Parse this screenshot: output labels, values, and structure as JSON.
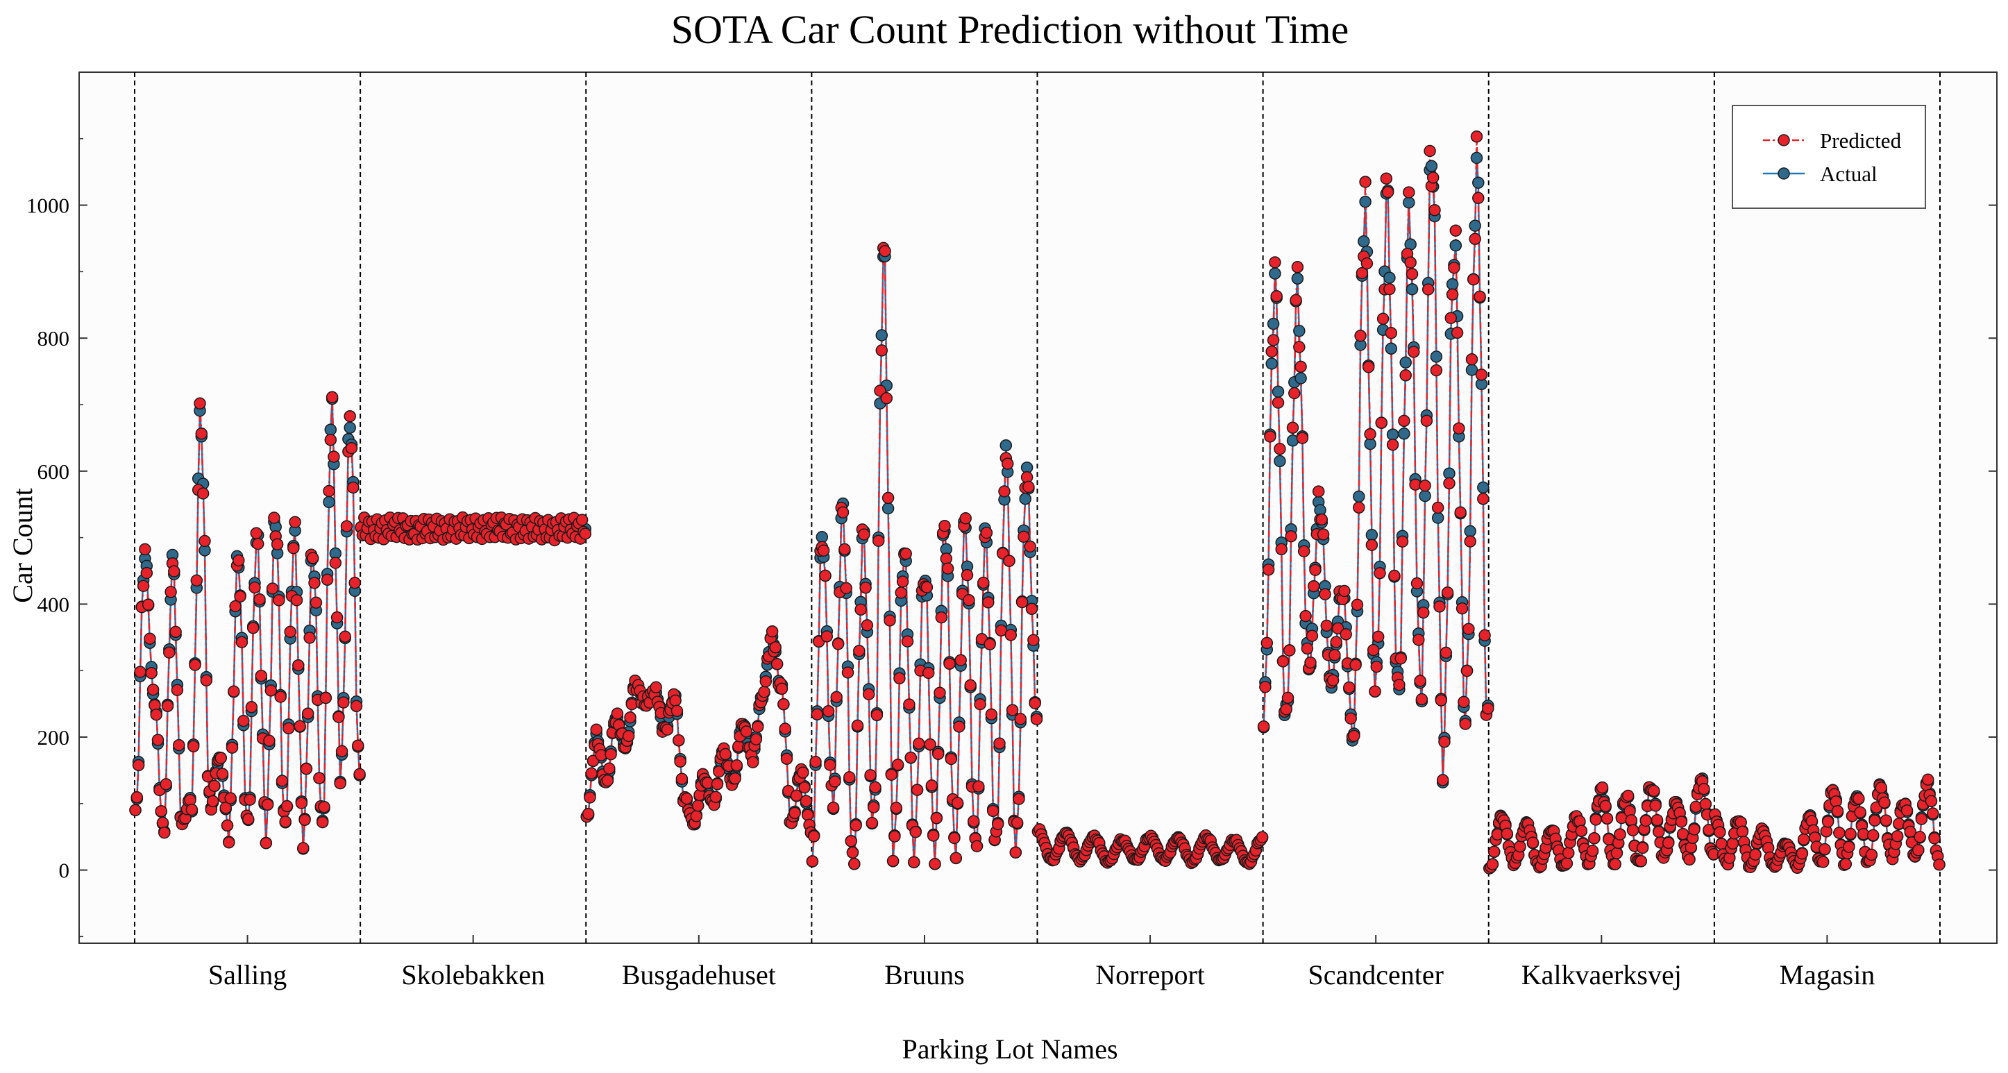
{
  "chart_data": {
    "type": "line",
    "title": "SOTA Car Count Prediction without Time",
    "xlabel": "Parking Lot Names",
    "ylabel": "Car Count",
    "ylim": [
      -110,
      1200
    ],
    "yticks": [
      0,
      200,
      400,
      600,
      800,
      1000
    ],
    "grid": false,
    "legend_position": "top-right",
    "colors": {
      "predicted": "#e8222b",
      "predicted_line": "#e8222b",
      "actual": "#1f77b4",
      "actual_marker_face": "#2f6a8c",
      "marker_edge": "#1a1a1a",
      "separator": "#000000"
    },
    "categories": [
      "Salling",
      "Skolebakken",
      "Busgadehuset",
      "Bruuns",
      "Norreport",
      "Scandcenter",
      "Kalkvaerksvej",
      "Magasin"
    ],
    "series": [
      {
        "name": "Predicted",
        "style": "dash-dot",
        "marker": "circle"
      },
      {
        "name": "Actual",
        "style": "solid",
        "marker": "circle"
      }
    ],
    "segments": [
      {
        "name": "Salling",
        "anchors": [
          75,
          470,
          260,
          60,
          460,
          70,
          110,
          680,
          90,
          170,
          60,
          470,
          60,
          500,
          60,
          530,
          60,
          500,
          50,
          480,
          60,
          690,
          150,
          680,
          130
        ]
      },
      {
        "name": "Skolebakken",
        "anchors": [
          515,
          512,
          516,
          511,
          514,
          512,
          515,
          513,
          516,
          512,
          514,
          511,
          515,
          513
        ]
      },
      {
        "name": "Busgadehuset",
        "anchors": [
          80,
          200,
          130,
          230,
          185,
          280,
          250,
          270,
          210,
          260,
          110,
          70,
          140,
          100,
          180,
          130,
          220,
          170,
          260,
          350,
          270,
          70,
          150,
          60
        ]
      },
      {
        "name": "Bruuns",
        "anchors": [
          30,
          500,
          100,
          540,
          0,
          500,
          60,
          920,
          30,
          480,
          30,
          450,
          30,
          520,
          30,
          520,
          30,
          500,
          30,
          620,
          30,
          600,
          240
        ]
      },
      {
        "name": "Norreport",
        "anchors": [
          60,
          15,
          55,
          15,
          50,
          12,
          45,
          15,
          50,
          15,
          48,
          12,
          50,
          15,
          45,
          10,
          48
        ]
      },
      {
        "name": "Scandcenter",
        "anchors": [
          220,
          880,
          220,
          870,
          300,
          550,
          280,
          420,
          200,
          990,
          270,
          1010,
          260,
          980,
          270,
          1080,
          170,
          940,
          230,
          1050,
          210
        ]
      },
      {
        "name": "Kalkvaerksvej",
        "anchors": [
          0,
          80,
          10,
          70,
          5,
          60,
          5,
          80,
          10,
          120,
          10,
          110,
          10,
          125,
          20,
          100,
          20,
          135,
          20
        ]
      },
      {
        "name": "Magasin",
        "anchors": [
          80,
          10,
          75,
          5,
          60,
          5,
          40,
          5,
          80,
          10,
          120,
          10,
          110,
          10,
          125,
          20,
          100,
          20,
          130,
          10
        ]
      }
    ]
  }
}
